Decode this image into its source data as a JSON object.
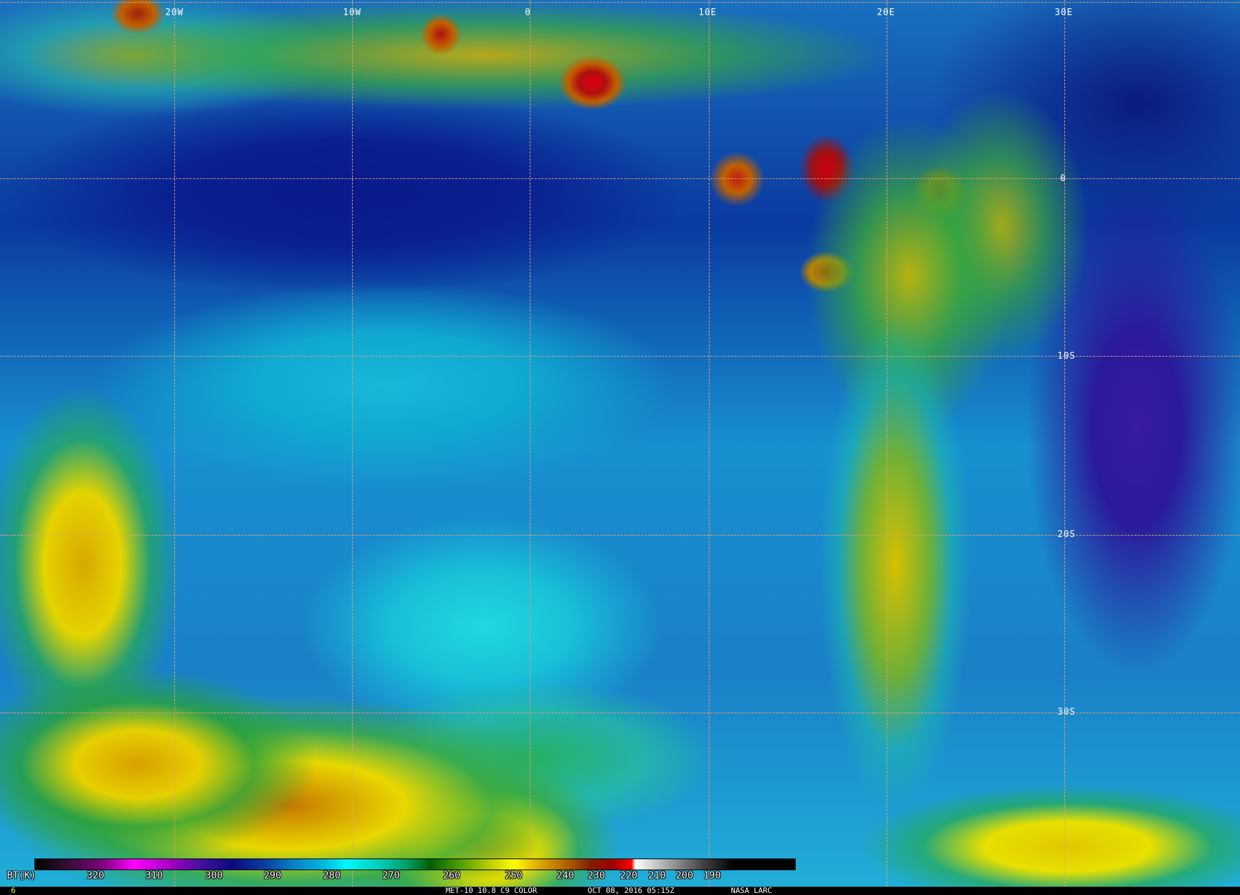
{
  "image": {
    "type": "satellite infrared brightness temperature image",
    "grid_lon_labels": [
      "20W",
      "10W",
      "0",
      "10E",
      "20E",
      "30E"
    ],
    "grid_lat_labels": [
      "0",
      "10S",
      "20S",
      "30S"
    ]
  },
  "colorbar": {
    "unit_label": "BT(K)",
    "tick_labels": [
      "320",
      "310",
      "300",
      "290",
      "280",
      "270",
      "260",
      "250",
      "240",
      "230",
      "220",
      "210",
      "200",
      "190"
    ],
    "colors": [
      "#000000",
      "#800080",
      "#ff00ff",
      "#0a0a80",
      "#0a80c8",
      "#00f8f8",
      "#00a060",
      "#ffff00",
      "#e0b000",
      "#802000",
      "#ff0000",
      "#ffffff",
      "#808080"
    ]
  },
  "footer": {
    "frame_number": "6",
    "caption": "MET-10 10.8 C9 COLOR",
    "datetime": "OCT 08, 2016 05:15Z",
    "credit": "NASA LARC"
  }
}
